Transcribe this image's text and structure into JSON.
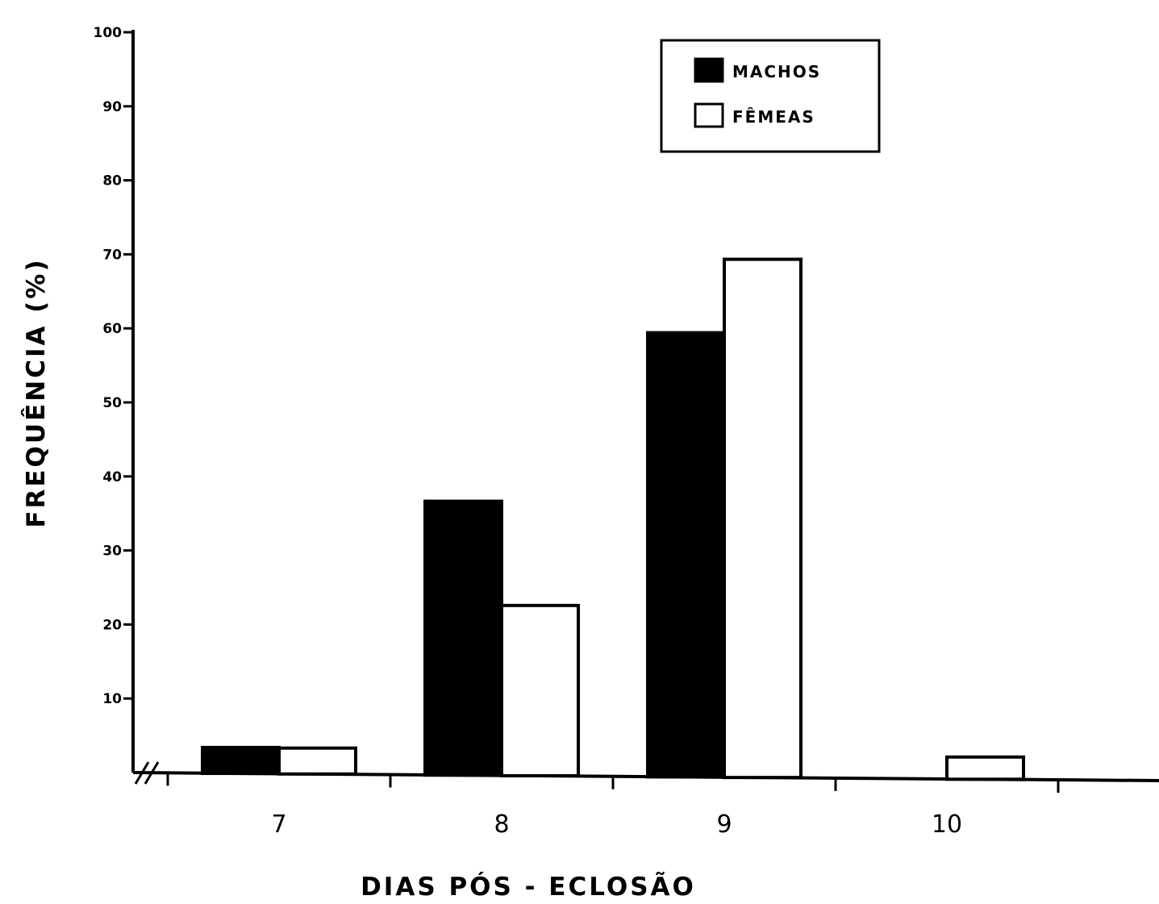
{
  "chart_data": {
    "type": "bar",
    "ylabel": "FREQUÊNCIA (%)",
    "xlabel": "DIAS PÓS - ECLOSÃO",
    "categories": [
      "7",
      "8",
      "9",
      "10"
    ],
    "series": [
      {
        "name": "MACHOS",
        "values": [
          3.5,
          37,
          60,
          0
        ],
        "color": "#000000"
      },
      {
        "name": "FÊMEAS",
        "values": [
          3.5,
          23,
          70,
          3
        ],
        "color": "#ffffff"
      }
    ],
    "ylim": [
      0,
      100
    ],
    "yticks": [
      "10",
      "20",
      "30",
      "40",
      "50",
      "60",
      "70",
      "80",
      "90",
      "100"
    ],
    "legend_position": "top-right",
    "axis_break": "//",
    "grid": false
  }
}
